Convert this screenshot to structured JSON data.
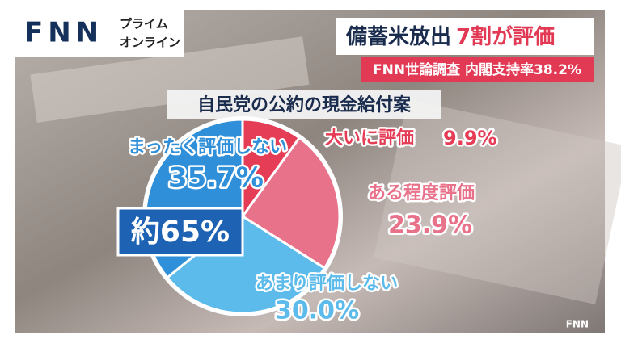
{
  "logo": {
    "brand": "FNN",
    "line1": "プライム",
    "line2": "オンライン"
  },
  "headline": {
    "part1": "備蓄米放出",
    "part2": "7割が評価"
  },
  "subheadline": "FNN世論調査 内閣支持率38.2%",
  "corner_logo": "FNN",
  "chart_data": {
    "type": "pie",
    "title": "自民党の公約の現金給付案",
    "categories": [
      "大いに評価",
      "ある程度評価",
      "あまり評価しない",
      "まったく評価しない"
    ],
    "values": [
      9.9,
      23.9,
      30.0,
      35.7
    ],
    "value_labels": [
      "9.9%",
      "23.9%",
      "30.0%",
      "35.7%"
    ],
    "colors": [
      "#e63d57",
      "#e9728b",
      "#5cbbea",
      "#2f8fd9"
    ],
    "annotation": "約65%"
  }
}
